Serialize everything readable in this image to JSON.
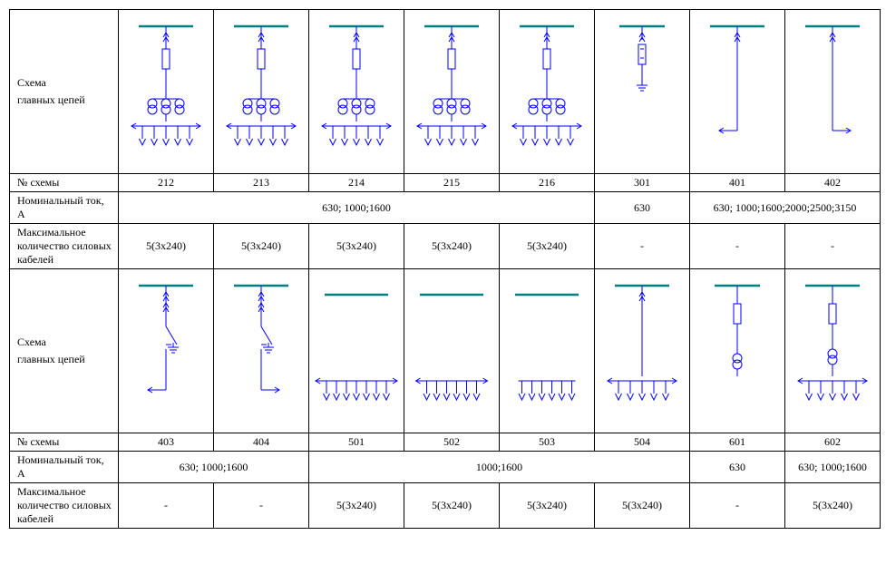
{
  "labels": {
    "scheme_header": "Схема",
    "scheme_sub": "главных цепей",
    "scheme_no": "№ схемы",
    "nominal_current": "Номинальный ток, А",
    "max_cables": "Максимальное количество силовых кабелей"
  },
  "colors": {
    "border": "#000000",
    "bus": "#008080",
    "line": "#0000ff",
    "text": "#000000",
    "bg": "#ffffff"
  },
  "row1": {
    "cols": [
      {
        "no": "212",
        "type": "full_fuse_ct"
      },
      {
        "no": "213",
        "type": "full_fuse_ct"
      },
      {
        "no": "214",
        "type": "full_fuse_ct"
      },
      {
        "no": "215",
        "type": "full_fuse_ct"
      },
      {
        "no": "216",
        "type": "full_fuse_ct"
      },
      {
        "no": "301",
        "type": "bus_fuse_ground"
      },
      {
        "no": "401",
        "type": "bus_arrow_left"
      },
      {
        "no": "402",
        "type": "bus_arrow_right"
      }
    ],
    "nominal": {
      "span212_216": "630; 1000;1600",
      "c301": "630",
      "span401_402": "630; 1000;1600;2000;2500;3150"
    },
    "cables": {
      "c212": "5(3х240)",
      "c213": "5(3х240)",
      "c214": "5(3х240)",
      "c215": "5(3х240)",
      "c216": "5(3х240)",
      "c301": "-",
      "c401": "-",
      "c402": "-"
    }
  },
  "row2": {
    "cols": [
      {
        "no": "403",
        "type": "bus_switch_left"
      },
      {
        "no": "404",
        "type": "bus_switch_right"
      },
      {
        "no": "501",
        "type": "bus_outgoing7"
      },
      {
        "no": "502",
        "type": "bus_outgoing6"
      },
      {
        "no": "503",
        "type": "bus_outgoing6_noarrow"
      },
      {
        "no": "504",
        "type": "bus_in_outgoing5"
      },
      {
        "no": "601",
        "type": "bus_fuse_ct_single"
      },
      {
        "no": "602",
        "type": "bus_fuse_ct_outgoing"
      }
    ],
    "nominal": {
      "span403_404": "630; 1000;1600",
      "span501_504": "1000;1600",
      "c601": "630",
      "c602": "630; 1000;1600"
    },
    "cables": {
      "c403": "-",
      "c404": "-",
      "c501": "5(3х240)",
      "c502": "5(3х240)",
      "c503": "5(3х240)",
      "c504": "5(3х240)",
      "c601": "-",
      "c602": "5(3х240)"
    }
  },
  "style": {
    "bus_stroke_width": 2.5,
    "line_stroke_width": 1
  }
}
